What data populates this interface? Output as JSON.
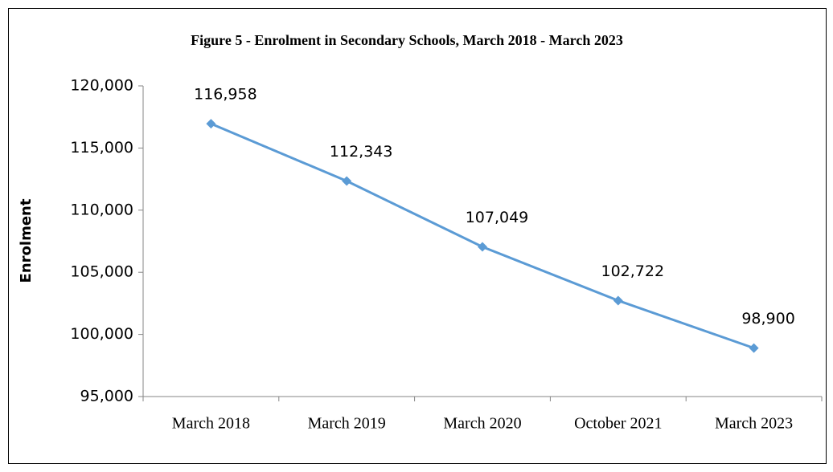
{
  "chart_data": {
    "type": "line",
    "title": "Figure 5 - Enrolment in Secondary  Schools, March 2018 - March 2023",
    "y_label": "Enrolment",
    "categories": [
      "March 2018",
      "March 2019",
      "March 2020",
      "October 2021",
      "March 2023"
    ],
    "series": [
      {
        "name": "Enrolment",
        "color": "#5b9bd5",
        "values": [
          116958,
          112343,
          107049,
          102722,
          98900
        ],
        "value_labels": [
          "116,958",
          "112,343",
          "107,049",
          "102,722",
          "98,900"
        ]
      }
    ],
    "ylim": [
      95000,
      120000
    ],
    "yticks": [
      {
        "value": 95000,
        "label": "95,000"
      },
      {
        "value": 100000,
        "label": "100,000"
      },
      {
        "value": 105000,
        "label": "105,000"
      },
      {
        "value": 110000,
        "label": "110,000"
      },
      {
        "value": 115000,
        "label": "115,000"
      },
      {
        "value": 120000,
        "label": "120,000"
      }
    ],
    "grid": false
  }
}
